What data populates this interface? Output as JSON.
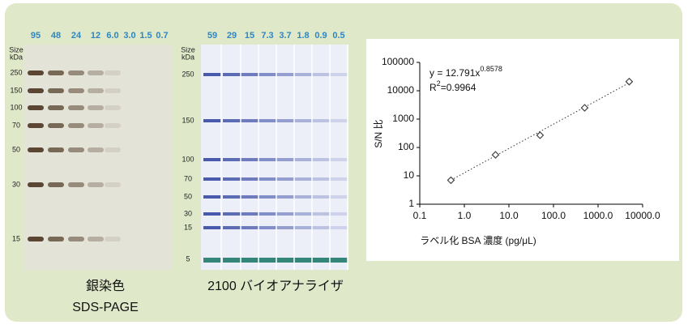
{
  "gels": [
    {
      "lanes": [
        "95",
        "48",
        "24",
        "12",
        "6.0",
        "3.0",
        "1.5",
        "0.7"
      ],
      "size_header": [
        "Size",
        "kDa"
      ],
      "sizes": [
        "250",
        "150",
        "100",
        "70",
        "50",
        "30",
        "15"
      ],
      "caption": [
        "銀染色",
        "SDS-PAGE"
      ]
    },
    {
      "lanes": [
        "59",
        "29",
        "15",
        "7.3",
        "3.7",
        "1.8",
        "0.9",
        "0.5"
      ],
      "size_header": [
        "Size",
        "kDa"
      ],
      "sizes": [
        "250",
        "150",
        "100",
        "70",
        "50",
        "30",
        "15",
        "5"
      ],
      "caption": [
        "2100 バイオアナライザ"
      ]
    }
  ],
  "chart_data": {
    "type": "scatter",
    "x_label": "ラベル化 BSA 濃度 (pg/μL)",
    "y_label": "S/N 比",
    "x": [
      0.5,
      5,
      50,
      500,
      5000
    ],
    "values": [
      7,
      55,
      270,
      2500,
      21000
    ],
    "color": "#444444",
    "log_x": true,
    "log_y": true,
    "xlim": [
      0.1,
      10000
    ],
    "ylim": [
      1,
      100000
    ],
    "xticks": [
      0.1,
      {
        "value": 1,
        "label": "1.0"
      },
      {
        "value": 10,
        "label": "10.0"
      },
      {
        "value": 100,
        "label": "100.0"
      },
      {
        "value": 1000,
        "label": "1000.0"
      },
      {
        "value": 10000,
        "label": "10000.0"
      }
    ],
    "yticks": [
      1,
      10,
      100,
      1000,
      10000,
      100000
    ],
    "fit": {
      "prefix": "y = ",
      "coefficient": 12.791,
      "variable": "x",
      "exponent": 0.8578,
      "r2_symbol": "R",
      "r2_power": "2",
      "r2_sign": "=",
      "r2": 0.9964
    }
  }
}
